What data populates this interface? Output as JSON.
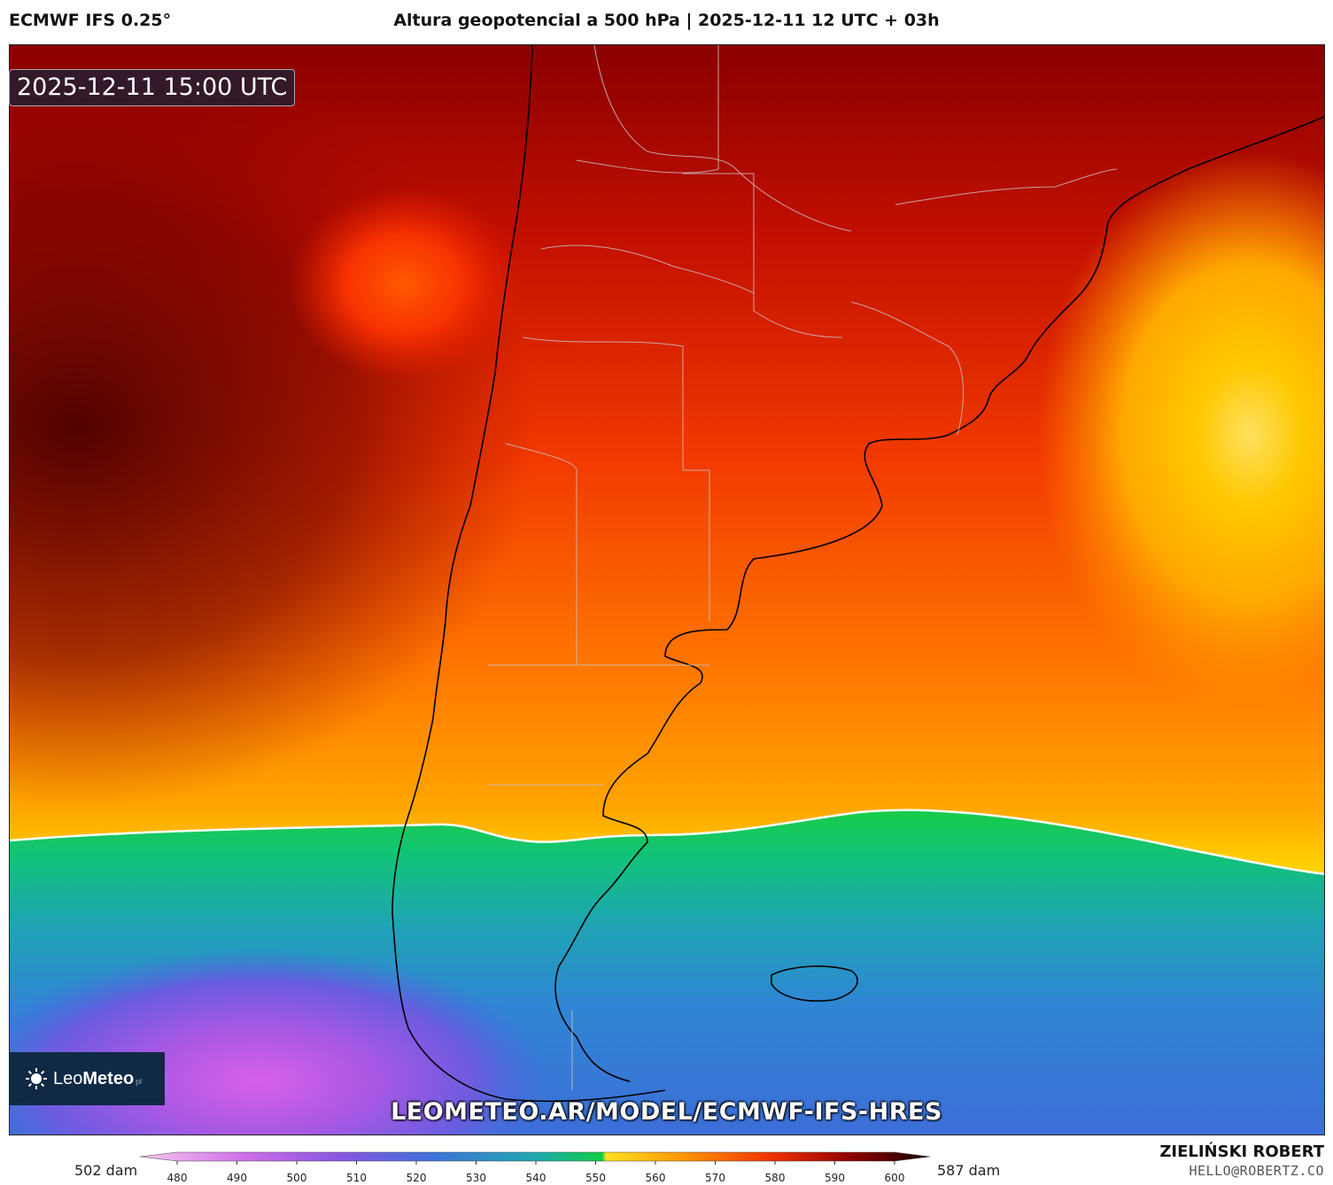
{
  "header": {
    "model": "ECMWF IFS 0.25°",
    "title": "Altura geopotencial a 500 hPa | 2025-12-11 12 UTC + 03h"
  },
  "map": {
    "valid_time": "2025-12-11 15:00 UTC",
    "watermark": "LEOMETEO.AR/MODEL/ECMWF-IFS-HRES",
    "logo": {
      "brand_light": "Leo",
      "brand_bold": "Meteo",
      "suffix": "pl"
    }
  },
  "colorbar": {
    "min_label": "502 dam",
    "max_label": "587 dam",
    "ticks": [
      "480",
      "490",
      "500",
      "510",
      "520",
      "530",
      "540",
      "550",
      "560",
      "570",
      "580",
      "590",
      "600"
    ],
    "colors": [
      "#f6c8f0",
      "#e07ae8",
      "#c05ae6",
      "#8d56e2",
      "#5b64de",
      "#3a78d8",
      "#2a8fd0",
      "#1ea8b0",
      "#18c070",
      "#10cf44",
      "#ffe020",
      "#ffc000",
      "#ffa000",
      "#ff8000",
      "#ff5a00",
      "#f03000",
      "#d81000",
      "#b00000",
      "#800000",
      "#500000",
      "#200000"
    ]
  },
  "credits": {
    "author": "ZIELIŃSKI ROBERT",
    "email": "HELLO@ROBERTZ.CO"
  }
}
